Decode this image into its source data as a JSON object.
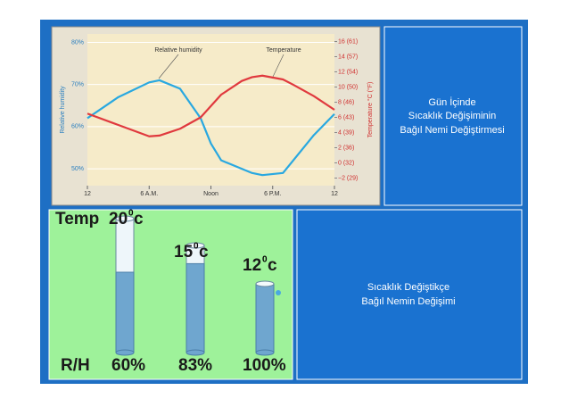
{
  "chart_data": {
    "type": "line",
    "x": [
      0,
      3,
      6,
      7,
      9,
      11,
      12,
      13,
      15,
      16,
      17,
      19,
      20,
      22,
      24
    ],
    "xlim": [
      0,
      24
    ],
    "xticks": [
      {
        "value": 0,
        "label": "12"
      },
      {
        "value": 6,
        "label": "6 A.M."
      },
      {
        "value": 12,
        "label": "Noon"
      },
      {
        "value": 18,
        "label": "6 P.M."
      },
      {
        "value": 24,
        "label": "12"
      }
    ],
    "ylabel": "Relative humidity",
    "y2label": "Temperature °C (°F)",
    "ylim": [
      46,
      82
    ],
    "yticks": [
      {
        "value": 50,
        "label": "50%"
      },
      {
        "value": 60,
        "label": "60%"
      },
      {
        "value": 70,
        "label": "70%"
      },
      {
        "value": 80,
        "label": "80%"
      }
    ],
    "y2lim": [
      -3,
      17
    ],
    "y2ticks": [
      {
        "value": -2,
        "label": "−2 (29)"
      },
      {
        "value": 0,
        "label": "0 (32)"
      },
      {
        "value": 2,
        "label": "2 (36)"
      },
      {
        "value": 4,
        "label": "4 (39)"
      },
      {
        "value": 6,
        "label": "6 (43)"
      },
      {
        "value": 8,
        "label": "8 (46)"
      },
      {
        "value": 10,
        "label": "10 (50)"
      },
      {
        "value": 12,
        "label": "12 (54)"
      },
      {
        "value": 14,
        "label": "14 (57)"
      },
      {
        "value": 16,
        "label": "16 (61)"
      }
    ],
    "series": [
      {
        "name": "Relative humidity",
        "color": "#29a8e0",
        "values": [
          62,
          67,
          70.5,
          71,
          69,
          62,
          56,
          52,
          50,
          49,
          48.5,
          49,
          52,
          58,
          63
        ]
      },
      {
        "name": "Temperature",
        "color": "#e0393e",
        "axis": "y2",
        "values": [
          6.5,
          5,
          3.5,
          3.6,
          4.5,
          6,
          7.5,
          9,
          10.8,
          11.3,
          11.5,
          11,
          10.3,
          8.8,
          7
        ]
      }
    ]
  },
  "info_top": [
    "Gün İçinde",
    "Sıcaklık Değişiminin",
    "Bağıl Nemi Değiştirmesi"
  ],
  "info_bottom": [
    "Sıcaklık Değiştikçe",
    "Bağıl Nemin Değişimi"
  ],
  "cylinders": {
    "temp_label": "Temp",
    "degree": "0",
    "unit": "c",
    "rh_label": "R/H",
    "items": [
      {
        "temp": "20",
        "rh": 60,
        "rh_text": "60%"
      },
      {
        "temp": "15",
        "rh": 83,
        "rh_text": "83%"
      },
      {
        "temp": "12",
        "rh": 100,
        "rh_text": "100%"
      }
    ]
  }
}
